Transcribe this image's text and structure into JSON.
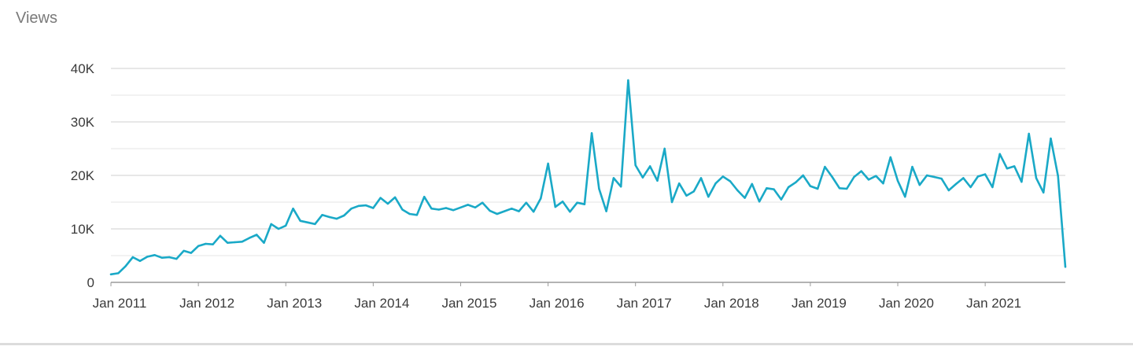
{
  "page": {
    "title": "Views"
  },
  "chart_data": {
    "type": "line",
    "title": "Views",
    "xlabel": "",
    "ylabel": "",
    "ylim": [
      0,
      40000
    ],
    "xlim": [
      "2011-01",
      "2021-12"
    ],
    "grid": true,
    "legend": "none",
    "line_color": "#1aa9c7",
    "grid_color": "#c8c8c8",
    "y_ticks": [
      {
        "value": 0,
        "label": "0"
      },
      {
        "value": 10000,
        "label": "10K"
      },
      {
        "value": 20000,
        "label": "20K"
      },
      {
        "value": 30000,
        "label": "30K"
      },
      {
        "value": 40000,
        "label": "40K"
      }
    ],
    "x_ticks": [
      {
        "value": "2011-01",
        "label": "Jan 2011"
      },
      {
        "value": "2012-01",
        "label": "Jan 2012"
      },
      {
        "value": "2013-01",
        "label": "Jan 2013"
      },
      {
        "value": "2014-01",
        "label": "Jan 2014"
      },
      {
        "value": "2015-01",
        "label": "Jan 2015"
      },
      {
        "value": "2016-01",
        "label": "Jan 2016"
      },
      {
        "value": "2017-01",
        "label": "Jan 2017"
      },
      {
        "value": "2018-01",
        "label": "Jan 2018"
      },
      {
        "value": "2019-01",
        "label": "Jan 2019"
      },
      {
        "value": "2020-01",
        "label": "Jan 2020"
      },
      {
        "value": "2021-01",
        "label": "Jan 2021"
      }
    ],
    "series": [
      {
        "x": [
          "2011-01",
          "2011-02",
          "2011-03",
          "2011-04",
          "2011-05",
          "2011-06",
          "2011-07",
          "2011-08",
          "2011-09",
          "2011-10",
          "2011-11",
          "2011-12",
          "2012-01",
          "2012-02",
          "2012-03",
          "2012-04",
          "2012-05",
          "2012-06",
          "2012-07",
          "2012-08",
          "2012-09",
          "2012-10",
          "2012-11",
          "2012-12",
          "2013-01",
          "2013-02",
          "2013-03",
          "2013-04",
          "2013-05",
          "2013-06",
          "2013-07",
          "2013-08",
          "2013-09",
          "2013-10",
          "2013-11",
          "2013-12",
          "2014-01",
          "2014-02",
          "2014-03",
          "2014-04",
          "2014-05",
          "2014-06",
          "2014-07",
          "2014-08",
          "2014-09",
          "2014-10",
          "2014-11",
          "2014-12",
          "2015-01",
          "2015-02",
          "2015-03",
          "2015-04",
          "2015-05",
          "2015-06",
          "2015-07",
          "2015-08",
          "2015-09",
          "2015-10",
          "2015-11",
          "2015-12",
          "2016-01",
          "2016-02",
          "2016-03",
          "2016-04",
          "2016-05",
          "2016-06",
          "2016-07",
          "2016-08",
          "2016-09",
          "2016-10",
          "2016-11",
          "2016-12",
          "2017-01",
          "2017-02",
          "2017-03",
          "2017-04",
          "2017-05",
          "2017-06",
          "2017-07",
          "2017-08",
          "2017-09",
          "2017-10",
          "2017-11",
          "2017-12",
          "2018-01",
          "2018-02",
          "2018-03",
          "2018-04",
          "2018-05",
          "2018-06",
          "2018-07",
          "2018-08",
          "2018-09",
          "2018-10",
          "2018-11",
          "2018-12",
          "2019-01",
          "2019-02",
          "2019-03",
          "2019-04",
          "2019-05",
          "2019-06",
          "2019-07",
          "2019-08",
          "2019-09",
          "2019-10",
          "2019-11",
          "2019-12",
          "2020-01",
          "2020-02",
          "2020-03",
          "2020-04",
          "2020-05",
          "2020-06",
          "2020-07",
          "2020-08",
          "2020-09",
          "2020-10",
          "2020-11",
          "2020-12",
          "2021-01",
          "2021-02",
          "2021-03",
          "2021-04",
          "2021-05",
          "2021-06",
          "2021-07",
          "2021-08",
          "2021-09",
          "2021-10",
          "2021-11",
          "2021-12"
        ],
        "values": [
          1500,
          1700,
          3000,
          4700,
          4000,
          4800,
          5100,
          4600,
          4700,
          4400,
          5900,
          5500,
          6800,
          7200,
          7100,
          8700,
          7400,
          7500,
          7600,
          8300,
          8900,
          7400,
          10900,
          10000,
          10600,
          13800,
          11500,
          11200,
          10900,
          12600,
          12200,
          11900,
          12500,
          13800,
          14300,
          14400,
          13900,
          15800,
          14700,
          15900,
          13600,
          12800,
          12600,
          16000,
          13800,
          13600,
          13900,
          13500,
          14000,
          14500,
          14000,
          14900,
          13400,
          12800,
          13300,
          13800,
          13300,
          14900,
          13200,
          15700,
          22200,
          14100,
          15100,
          13200,
          14900,
          14600,
          27900,
          17500,
          13300,
          19500,
          17900,
          37800,
          21900,
          19600,
          21700,
          19000,
          25000,
          15000,
          18500,
          16200,
          17000,
          19500,
          16000,
          18500,
          19800,
          18900,
          17200,
          15800,
          18400,
          15100,
          17600,
          17400,
          15500,
          17800,
          18700,
          20000,
          18000,
          17500,
          21600,
          19700,
          17600,
          17500,
          19700,
          20800,
          19200,
          19900,
          18500,
          23400,
          19000,
          16000,
          21600,
          18200,
          20000,
          19700,
          19400,
          17200,
          18400,
          19500,
          17800,
          19800,
          20200,
          17800,
          24000,
          21300,
          21700,
          18800,
          27800,
          19500,
          16800,
          26900,
          19900,
          2900
        ]
      }
    ]
  }
}
